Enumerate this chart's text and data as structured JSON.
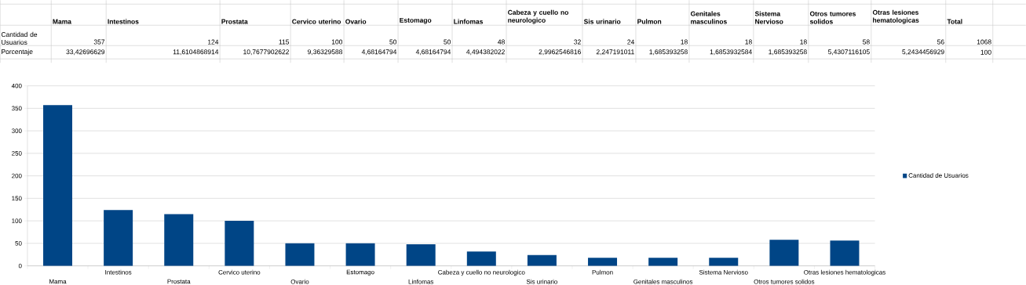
{
  "chart_data": {
    "type": "bar",
    "categories": [
      "Mama",
      "Intestinos",
      "Prostata",
      "Cervico uterino",
      "Ovario",
      "Estomago",
      "Linfomas",
      "Cabeza y cuello no neurologico",
      "Sis urinario",
      "Pulmon",
      "Genitales masculinos",
      "Sistema Nervioso",
      "Otros tumores solidos",
      "Otras lesiones hematologicas"
    ],
    "series": [
      {
        "name": "Cantidad de Usuarios",
        "color": "#004586",
        "values": [
          357,
          124,
          115,
          100,
          50,
          50,
          48,
          32,
          24,
          18,
          18,
          18,
          58,
          56
        ]
      }
    ],
    "ylim": [
      0,
      400
    ],
    "yticks": [
      0,
      50,
      100,
      150,
      200,
      250,
      300,
      350,
      400
    ],
    "grid": "y",
    "legend": "right",
    "annotations": [
      "Porcentaje",
      "33,42696629",
      "11,6104868914",
      "10,7677902622",
      "9,36329588",
      "4,68164794",
      "4,68164794",
      "4,494382022",
      "2,9962546816",
      "2,247191011",
      "1,685393258",
      "1,6853932584",
      "1,685393258",
      "5,4307116105",
      "5,2434456929",
      "Total",
      "1068",
      "100",
      "357",
      "124",
      "115",
      "100",
      "50",
      "50",
      "48",
      "32",
      "24",
      "18",
      "18",
      "18",
      "58",
      "56"
    ]
  }
}
